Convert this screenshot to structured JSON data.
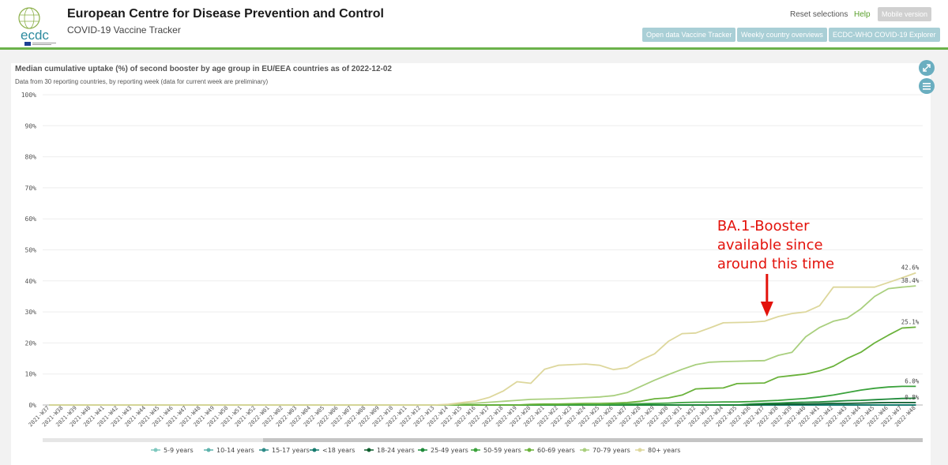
{
  "header": {
    "org_title": "European Centre for Disease Prevention and Control",
    "app_title": "COVID-19 Vaccine Tracker",
    "logo_text": "ecdc",
    "links": {
      "reset": "Reset selections",
      "help": "Help",
      "mobile": "Mobile version"
    },
    "nav_buttons": [
      "Open data Vaccine Tracker",
      "Weekly country overviews",
      "ECDC-WHO COVID-19 Explorer"
    ]
  },
  "icons": {
    "expand": "expand-arrows-icon",
    "menu": "hamburger-menu-icon"
  },
  "colors": {
    "header_rule": "#6bb24a",
    "nav_button": "#a9cfd6",
    "icon_button": "#6aaec0",
    "annotation": "#e3120b"
  },
  "chart_data": {
    "type": "line",
    "title": "Median cumulative uptake (%) of second booster by age group in EU/EEA countries as of 2022-12-02",
    "subtitle": "Data from 30 reporting countries, by reporting week (data for current week are preliminary)",
    "ylim": [
      0,
      100
    ],
    "yticks": [
      "0%",
      "10%",
      "20%",
      "30%",
      "40%",
      "50%",
      "60%",
      "70%",
      "80%",
      "90%",
      "100%"
    ],
    "x": [
      "2021-W37",
      "2021-W38",
      "2021-W39",
      "2021-W40",
      "2021-W41",
      "2021-W42",
      "2021-W43",
      "2021-W44",
      "2021-W45",
      "2021-W46",
      "2021-W47",
      "2021-W48",
      "2021-W49",
      "2021-W50",
      "2021-W51",
      "2021-W52",
      "2022-W01",
      "2022-W02",
      "2022-W03",
      "2022-W04",
      "2022-W05",
      "2022-W06",
      "2022-W07",
      "2022-W08",
      "2022-W09",
      "2022-W10",
      "2022-W11",
      "2022-W12",
      "2022-W13",
      "2022-W14",
      "2022-W15",
      "2022-W16",
      "2022-W17",
      "2022-W18",
      "2022-W19",
      "2022-W20",
      "2022-W21",
      "2022-W22",
      "2022-W23",
      "2022-W24",
      "2022-W25",
      "2022-W26",
      "2022-W27",
      "2022-W28",
      "2022-W29",
      "2022-W30",
      "2022-W31",
      "2022-W32",
      "2022-W33",
      "2022-W34",
      "2022-W35",
      "2022-W36",
      "2022-W37",
      "2022-W38",
      "2022-W39",
      "2022-W40",
      "2022-W41",
      "2022-W42",
      "2022-W43",
      "2022-W44",
      "2022-W45",
      "2022-W46",
      "2022-W47",
      "2022-W48"
    ],
    "grid": "horizontal",
    "legend_position": "bottom",
    "series": [
      {
        "name": "5-9 years",
        "color": "#7fc8bf",
        "values": [
          0,
          0,
          0,
          0,
          0,
          0,
          0,
          0,
          0,
          0,
          0,
          0,
          0,
          0,
          0,
          0,
          0,
          0,
          0,
          0,
          0,
          0,
          0,
          0,
          0,
          0,
          0,
          0,
          0,
          0,
          0,
          0,
          0,
          0,
          0,
          0,
          0,
          0,
          0,
          0,
          0,
          0,
          0,
          0,
          0,
          0,
          0,
          0,
          0,
          0,
          0,
          0,
          0,
          0,
          0,
          0,
          0,
          0,
          0,
          0,
          0,
          0,
          0,
          0
        ]
      },
      {
        "name": "10-14 years",
        "color": "#5fb3ad",
        "values": [
          0,
          0,
          0,
          0,
          0,
          0,
          0,
          0,
          0,
          0,
          0,
          0,
          0,
          0,
          0,
          0,
          0,
          0,
          0,
          0,
          0,
          0,
          0,
          0,
          0,
          0,
          0,
          0,
          0,
          0,
          0,
          0,
          0,
          0,
          0,
          0,
          0,
          0,
          0,
          0,
          0,
          0,
          0,
          0,
          0,
          0,
          0,
          0,
          0,
          0,
          0,
          0,
          0,
          0,
          0,
          0,
          0,
          0,
          0,
          0,
          0,
          0,
          0,
          0
        ]
      },
      {
        "name": "15-17 years",
        "color": "#2e8b88",
        "values": [
          0,
          0,
          0,
          0,
          0,
          0,
          0,
          0,
          0,
          0,
          0,
          0,
          0,
          0,
          0,
          0,
          0,
          0,
          0,
          0,
          0,
          0,
          0,
          0,
          0,
          0,
          0,
          0,
          0,
          0,
          0,
          0,
          0,
          0,
          0,
          0,
          0,
          0,
          0,
          0,
          0,
          0,
          0,
          0,
          0,
          0,
          0,
          0,
          0,
          0,
          0,
          0,
          0,
          0,
          0,
          0,
          0,
          0,
          0,
          0,
          0,
          0,
          0,
          0
        ]
      },
      {
        "name": "<18 years",
        "color": "#167a6e",
        "values": [
          0,
          0,
          0,
          0,
          0,
          0,
          0,
          0,
          0,
          0,
          0,
          0,
          0,
          0,
          0,
          0,
          0,
          0,
          0,
          0,
          0,
          0,
          0,
          0,
          0,
          0,
          0,
          0,
          0,
          0,
          0,
          0,
          0,
          0,
          0,
          0,
          0,
          0,
          0,
          0,
          0,
          0,
          0,
          0,
          0,
          0,
          0,
          0,
          0,
          0,
          0,
          0,
          0,
          0,
          0,
          0,
          0,
          0,
          0,
          0,
          0,
          0,
          0,
          0
        ]
      },
      {
        "name": "18-24 years",
        "color": "#0f5e2e",
        "values": [
          0,
          0,
          0,
          0,
          0,
          0,
          0,
          0,
          0,
          0,
          0,
          0,
          0,
          0,
          0,
          0,
          0,
          0,
          0,
          0,
          0,
          0,
          0,
          0,
          0,
          0,
          0,
          0,
          0,
          0,
          0,
          0,
          0,
          0,
          0,
          0,
          0,
          0,
          0,
          0,
          0,
          0,
          0,
          0,
          0,
          0,
          0,
          0,
          0,
          0,
          0,
          0,
          0.2,
          0.2,
          0.3,
          0.3,
          0.4,
          0.5,
          0.5,
          0.6,
          0.7,
          0.8,
          0.8,
          0.8
        ]
      },
      {
        "name": "25-49 years",
        "color": "#1f8a3a",
        "values": [
          0,
          0,
          0,
          0,
          0,
          0,
          0,
          0,
          0,
          0,
          0,
          0,
          0,
          0,
          0,
          0,
          0,
          0,
          0,
          0,
          0,
          0,
          0,
          0,
          0,
          0,
          0,
          0,
          0,
          0,
          0,
          0,
          0,
          0,
          0,
          0,
          0,
          0,
          0,
          0,
          0,
          0,
          0,
          0,
          0,
          0,
          0,
          0,
          0,
          0,
          0,
          0.3,
          0.5,
          0.6,
          0.8,
          0.9,
          1.0,
          1.2,
          1.4,
          1.5,
          1.7,
          1.9,
          2.1,
          2.2
        ]
      },
      {
        "name": "50-59 years",
        "color": "#3ba23c",
        "values": [
          0,
          0,
          0,
          0,
          0,
          0,
          0,
          0,
          0,
          0,
          0,
          0,
          0,
          0,
          0,
          0,
          0,
          0,
          0,
          0,
          0,
          0,
          0,
          0,
          0,
          0,
          0,
          0,
          0,
          0,
          0,
          0,
          0,
          0,
          0,
          0,
          0,
          0,
          0,
          0,
          0,
          0.2,
          0.3,
          0.4,
          0.5,
          0.6,
          0.8,
          0.9,
          0.9,
          1.0,
          1.0,
          1.1,
          1.3,
          1.5,
          1.8,
          2.1,
          2.6,
          3.2,
          4.0,
          4.8,
          5.4,
          5.8,
          6.0,
          6.0
        ]
      },
      {
        "name": "60-69 years",
        "color": "#6ab23b",
        "values": [
          0,
          0,
          0,
          0,
          0,
          0,
          0,
          0,
          0,
          0,
          0,
          0,
          0,
          0,
          0,
          0,
          0,
          0,
          0,
          0,
          0,
          0,
          0,
          0,
          0,
          0,
          0,
          0,
          0,
          0,
          0,
          0,
          0,
          0,
          0,
          0.2,
          0.3,
          0.3,
          0.4,
          0.5,
          0.5,
          0.6,
          0.8,
          1.2,
          2.0,
          2.3,
          3.2,
          5.2,
          5.4,
          5.5,
          6.9,
          7.0,
          7.1,
          9.0,
          9.5,
          10.0,
          11.0,
          12.5,
          15.0,
          17.0,
          20.0,
          22.5,
          24.8,
          25.1
        ]
      },
      {
        "name": "70-79 years",
        "color": "#a9cf7e",
        "values": [
          0,
          0,
          0,
          0,
          0,
          0,
          0,
          0,
          0,
          0,
          0,
          0,
          0,
          0,
          0,
          0,
          0,
          0,
          0,
          0,
          0,
          0,
          0,
          0,
          0,
          0,
          0,
          0,
          0,
          0,
          0.4,
          0.6,
          0.9,
          1.2,
          1.5,
          1.8,
          1.9,
          2.0,
          2.2,
          2.4,
          2.6,
          3.0,
          4.0,
          6.0,
          8.0,
          9.8,
          11.5,
          13.0,
          13.8,
          14.0,
          14.1,
          14.2,
          14.3,
          16.0,
          17.0,
          22.0,
          25.0,
          27.0,
          28.0,
          31.0,
          35.0,
          37.5,
          38.0,
          38.4
        ]
      },
      {
        "name": "80+ years",
        "color": "#ddd79c",
        "values": [
          0,
          0,
          0,
          0,
          0,
          0,
          0,
          0,
          0,
          0,
          0,
          0,
          0,
          0,
          0,
          0,
          0,
          0,
          0,
          0,
          0,
          0,
          0,
          0,
          0,
          0,
          0,
          0,
          0,
          0.2,
          0.8,
          1.3,
          2.5,
          4.5,
          7.5,
          7.0,
          11.5,
          12.8,
          13.0,
          13.2,
          12.8,
          11.4,
          12.0,
          14.5,
          16.5,
          20.5,
          23.0,
          23.2,
          24.8,
          26.5,
          26.6,
          26.7,
          27.0,
          28.5,
          29.5,
          30.0,
          32.0,
          38.0,
          38.0,
          38.0,
          38.0,
          39.5,
          41.0,
          42.6
        ]
      }
    ],
    "end_labels": [
      {
        "text": "42.6%",
        "value": 42.6
      },
      {
        "text": "38.4%",
        "value": 38.4
      },
      {
        "text": "25.1%",
        "value": 25.1
      },
      {
        "text": "6.0%",
        "value": 6.0
      },
      {
        "text": "0.8%",
        "value": 0.8
      }
    ],
    "annotation": {
      "lines": [
        "BA.1-Booster",
        "available since",
        "around this time"
      ],
      "points_to": "2022-W37"
    }
  }
}
